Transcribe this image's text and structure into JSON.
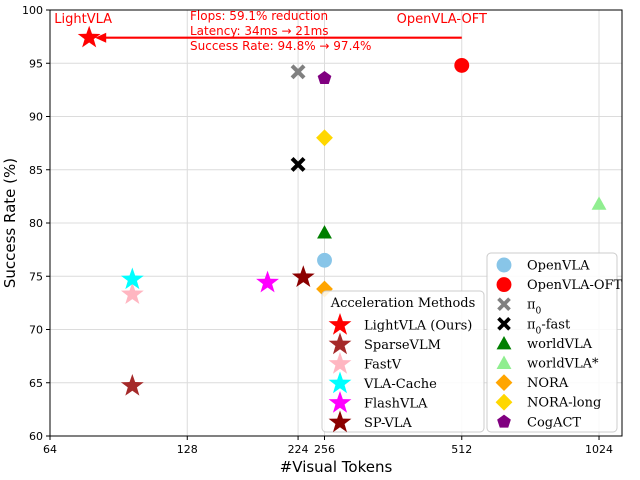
{
  "chart_data": {
    "type": "scatter",
    "xlabel": "#Visual Tokens",
    "ylabel": "Success Rate (%)",
    "xscale": "log2",
    "xlim": [
      64,
      1150
    ],
    "ylim": [
      60,
      100
    ],
    "xticks": [
      64,
      128,
      224,
      256,
      512,
      1024
    ],
    "xtick_labels": [
      "64",
      "128",
      "224",
      "256",
      "512",
      "1024"
    ],
    "yticks": [
      60,
      65,
      70,
      75,
      80,
      85,
      90,
      95,
      100
    ],
    "ytick_labels": [
      "60",
      "65",
      "70",
      "75",
      "80",
      "85",
      "90",
      "95",
      "100"
    ],
    "grid": true,
    "series": [
      {
        "name": "OpenVLA",
        "marker": "circle",
        "color": "#88c5e8",
        "points": [
          {
            "x": 256,
            "y": 76.5
          }
        ]
      },
      {
        "name": "OpenVLA-OFT",
        "marker": "circle",
        "color": "#ff0000",
        "points": [
          {
            "x": 512,
            "y": 94.8
          }
        ]
      },
      {
        "name": "π0",
        "marker": "x",
        "color": "#808080",
        "points": [
          {
            "x": 224,
            "y": 94.2
          }
        ]
      },
      {
        "name": "π0-fast",
        "marker": "x",
        "color": "#000000",
        "points": [
          {
            "x": 224,
            "y": 85.5
          }
        ]
      },
      {
        "name": "worldVLA",
        "marker": "triangle",
        "color": "#007f00",
        "points": [
          {
            "x": 256,
            "y": 79.1
          }
        ]
      },
      {
        "name": "worldVLA*",
        "marker": "triangle",
        "color": "#90ee90",
        "points": [
          {
            "x": 1024,
            "y": 81.8
          }
        ]
      },
      {
        "name": "NORA",
        "marker": "diamond",
        "color": "#ffa500",
        "points": [
          {
            "x": 256,
            "y": 73.8
          }
        ]
      },
      {
        "name": "NORA-long",
        "marker": "diamond",
        "color": "#ffd700",
        "points": [
          {
            "x": 256,
            "y": 88.0
          }
        ]
      },
      {
        "name": "CogACT",
        "marker": "pentagon",
        "color": "#800080",
        "points": [
          {
            "x": 256,
            "y": 93.6
          }
        ]
      },
      {
        "name": "LightVLA (Ours)",
        "marker": "star",
        "color": "#ff0000",
        "points": [
          {
            "x": 78,
            "y": 97.4
          }
        ]
      },
      {
        "name": "SparseVLM",
        "marker": "star",
        "color": "#a52a2a",
        "points": [
          {
            "x": 97,
            "y": 64.7
          }
        ]
      },
      {
        "name": "FastV",
        "marker": "star",
        "color": "#ffb6c1",
        "points": [
          {
            "x": 97,
            "y": 73.3
          }
        ]
      },
      {
        "name": "VLA-Cache",
        "marker": "star",
        "color": "#00ffff",
        "points": [
          {
            "x": 97,
            "y": 74.7
          }
        ]
      },
      {
        "name": "FlashVLA",
        "marker": "star",
        "color": "#ff00ff",
        "points": [
          {
            "x": 192,
            "y": 74.4
          }
        ]
      },
      {
        "name": "SP-VLA",
        "marker": "star",
        "color": "#8b0000",
        "points": [
          {
            "x": 230,
            "y": 74.9
          }
        ]
      }
    ],
    "point_labels": [
      {
        "text": "LightVLA",
        "x": 78,
        "y": 97.4,
        "color": "#ff0000"
      },
      {
        "text": "OpenVLA-OFT",
        "x": 512,
        "y": 94.8,
        "color": "#ff0000"
      }
    ],
    "annotation_arrow": {
      "from": {
        "x": 512,
        "y": 97.4
      },
      "to": {
        "x": 78,
        "y": 97.4
      },
      "color": "#ff0000"
    },
    "annotation_lines": [
      "Flops: 59.1% reduction",
      "Latency: 34ms → 21ms",
      "Success Rate: 94.8% → 97.4%"
    ],
    "legend_models": {
      "placement": "lower-right",
      "entries": [
        "OpenVLA",
        "OpenVLA-OFT",
        "π0",
        "π0-fast",
        "worldVLA",
        "worldVLA*",
        "NORA",
        "NORA-long",
        "CogACT"
      ]
    },
    "legend_acceleration": {
      "title": "Acceleration Methods",
      "placement": "lower-center",
      "entries": [
        "LightVLA (Ours)",
        "SparseVLM",
        "FastV",
        "VLA-Cache",
        "FlashVLA",
        "SP-VLA"
      ]
    }
  }
}
